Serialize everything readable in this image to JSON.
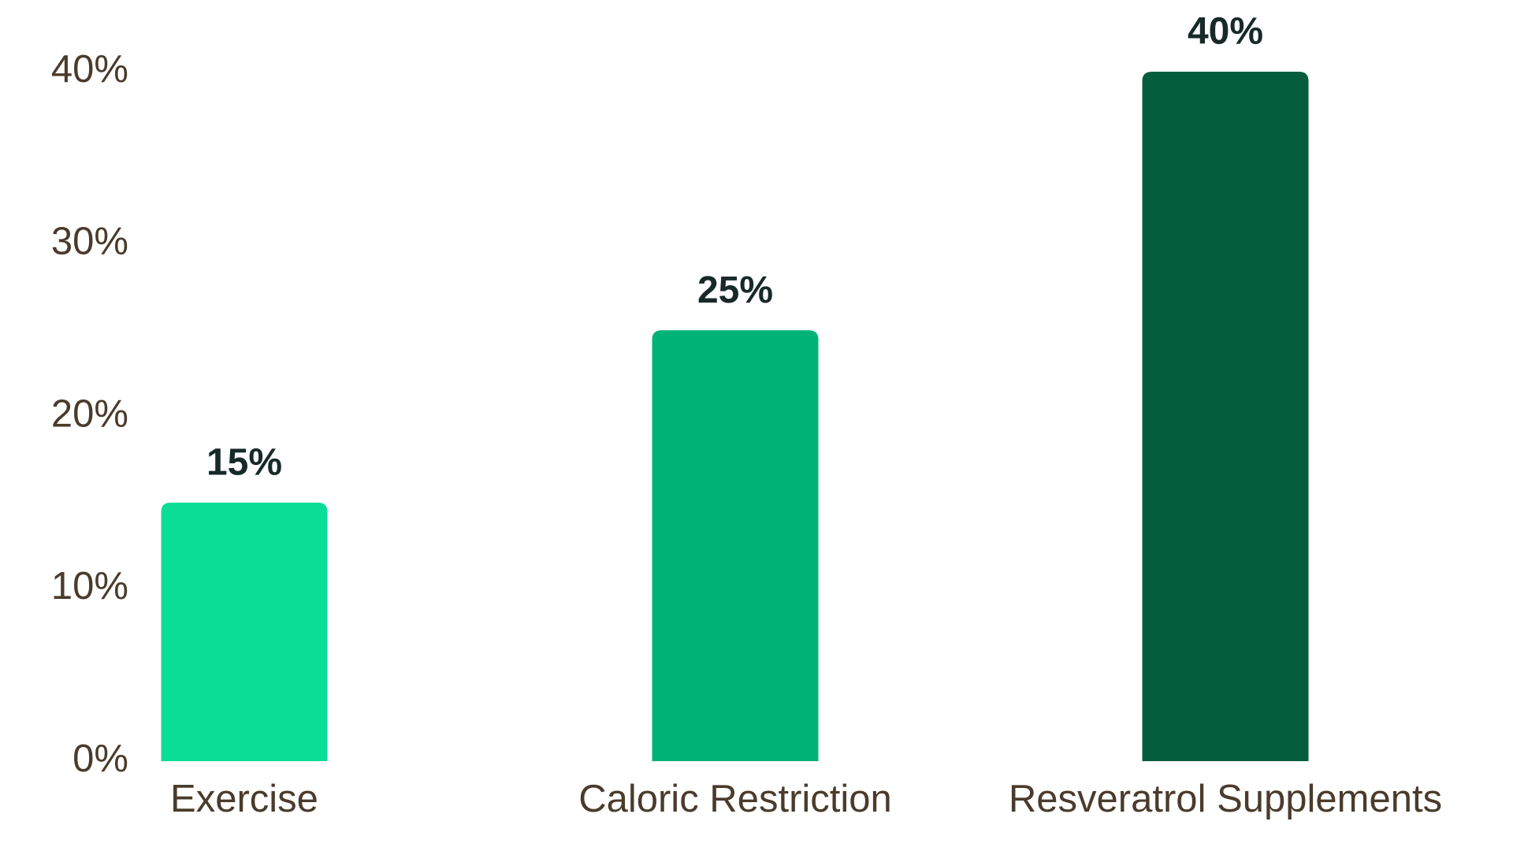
{
  "chart_data": {
    "type": "bar",
    "categories": [
      "Exercise",
      "Caloric Restriction",
      "Resveratrol Supplements"
    ],
    "values": [
      15,
      25,
      40
    ],
    "value_labels": [
      "15%",
      "25%",
      "40%"
    ],
    "colors": [
      "#0bdc96",
      "#02b377",
      "#045e3e"
    ],
    "ylim": [
      0,
      40
    ],
    "yticks": [
      {
        "value": 0,
        "label": "0%"
      },
      {
        "value": 10,
        "label": "10%"
      },
      {
        "value": 20,
        "label": "20%"
      },
      {
        "value": 30,
        "label": "30%"
      },
      {
        "value": 40,
        "label": "40%"
      }
    ],
    "grid": false
  }
}
